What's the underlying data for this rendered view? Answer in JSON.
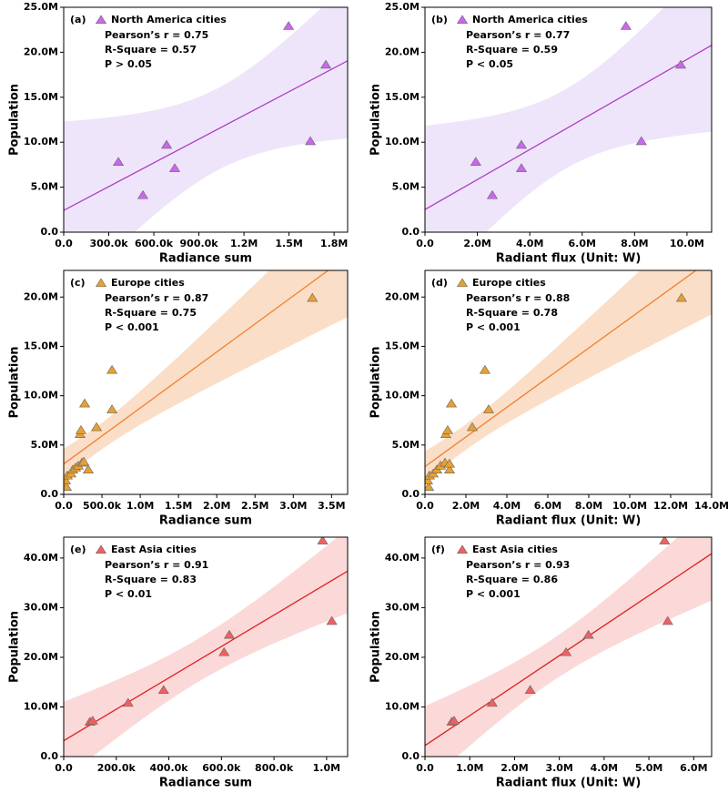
{
  "chart_data": [
    {
      "type": "scatter",
      "panel": "(a)",
      "xlabel": "Radiance sum",
      "ylabel": "Population",
      "annotations": [
        "Pearson’s r = 0.75",
        "R-Square = 0.57",
        "P > 0.05"
      ],
      "series": [
        {
          "name": "North America cities",
          "color": "#cc66ee",
          "x": [
            364000,
            527000,
            685000,
            739000,
            1497000,
            1642000,
            1745000
          ],
          "values": [
            7800000,
            4100000,
            9700000,
            7100000,
            22900000,
            10100000,
            18600000
          ]
        }
      ],
      "fit_color": "#b040c0",
      "band_color": "#e8dcf8",
      "xlim": [
        0,
        1890000
      ],
      "ylim": [
        0,
        25000000
      ],
      "xticks": [
        {
          "value": 0,
          "label": "0.0"
        },
        {
          "value": 300000,
          "label": "300.0k"
        },
        {
          "value": 600000,
          "label": "600.0k"
        },
        {
          "value": 900000,
          "label": "900.0k"
        },
        {
          "value": 1200000,
          "label": "1.2M"
        },
        {
          "value": 1500000,
          "label": "1.5M"
        },
        {
          "value": 1800000,
          "label": "1.8M"
        }
      ],
      "yticks": [
        {
          "value": 0,
          "label": "0.0"
        },
        {
          "value": 5000000,
          "label": "5.0M"
        },
        {
          "value": 10000000,
          "label": "10.0M"
        },
        {
          "value": 15000000,
          "label": "15.0M"
        },
        {
          "value": 20000000,
          "label": "20.0M"
        },
        {
          "value": 25000000,
          "label": "25.0M"
        }
      ]
    },
    {
      "type": "scatter",
      "panel": "(b)",
      "xlabel": "Radiant flux (Unit: W)",
      "ylabel": "Population",
      "annotations": [
        "Pearson’s r = 0.77",
        "R-Square = 0.59",
        "P < 0.05"
      ],
      "series": [
        {
          "name": "North America cities",
          "color": "#cc66ee",
          "x": [
            1940000,
            2570000,
            3680000,
            3680000,
            7670000,
            8260000,
            9760000
          ],
          "values": [
            7800000,
            4100000,
            9700000,
            7100000,
            22900000,
            10100000,
            18600000
          ]
        }
      ],
      "fit_color": "#b040c0",
      "band_color": "#e8dcf8",
      "xlim": [
        0,
        10940000
      ],
      "ylim": [
        0,
        25000000
      ],
      "xticks": [
        {
          "value": 0,
          "label": "0.0"
        },
        {
          "value": 2000000,
          "label": "2.0M"
        },
        {
          "value": 4000000,
          "label": "4.0M"
        },
        {
          "value": 6000000,
          "label": "6.0M"
        },
        {
          "value": 8000000,
          "label": "8.0M"
        },
        {
          "value": 10000000,
          "label": "10.0M"
        }
      ],
      "yticks": [
        {
          "value": 0,
          "label": "0.0"
        },
        {
          "value": 5000000,
          "label": "5.0M"
        },
        {
          "value": 10000000,
          "label": "10.0M"
        },
        {
          "value": 15000000,
          "label": "15.0M"
        },
        {
          "value": 20000000,
          "label": "20.0M"
        },
        {
          "value": 25000000,
          "label": "25.0M"
        }
      ]
    },
    {
      "type": "scatter",
      "panel": "(c)",
      "xlabel": "Radiance sum",
      "ylabel": "Population",
      "annotations": [
        "Pearson’s r = 0.87",
        "R-Square = 0.75",
        "P < 0.001"
      ],
      "series": [
        {
          "name": "Europe cities",
          "color": "#e8a030",
          "x": [
            36000,
            24000,
            48000,
            95000,
            119000,
            155000,
            190000,
            238000,
            262000,
            321000,
            214000,
            226000,
            274000,
            429000,
            631000,
            631000,
            3250000
          ],
          "values": [
            740000,
            1400000,
            1900000,
            2100000,
            2500000,
            2700000,
            2900000,
            3200000,
            3300000,
            2500000,
            6100000,
            6500000,
            9200000,
            6800000,
            8600000,
            12600000,
            19900000
          ]
        }
      ],
      "fit_color": "#f08030",
      "band_color": "#f9d3b4",
      "xlim": [
        0,
        3710000
      ],
      "ylim": [
        0,
        22700000
      ],
      "xticks": [
        {
          "value": 0,
          "label": "0.0"
        },
        {
          "value": 500000,
          "label": "500.0k"
        },
        {
          "value": 1000000,
          "label": "1.0M"
        },
        {
          "value": 1500000,
          "label": "1.5M"
        },
        {
          "value": 2000000,
          "label": "2.0M"
        },
        {
          "value": 2500000,
          "label": "2.5M"
        },
        {
          "value": 3000000,
          "label": "3.0M"
        },
        {
          "value": 3500000,
          "label": "3.5M"
        }
      ],
      "yticks": [
        {
          "value": 0,
          "label": "0.0"
        },
        {
          "value": 5000000,
          "label": "5.0M"
        },
        {
          "value": 10000000,
          "label": "10.0M"
        },
        {
          "value": 15000000,
          "label": "15.0M"
        },
        {
          "value": 20000000,
          "label": "20.0M"
        }
      ]
    },
    {
      "type": "scatter",
      "panel": "(d)",
      "xlabel": "Radiant flux (Unit: W)",
      "ylabel": "Population",
      "annotations": [
        "Pearson’s r = 0.88",
        "R-Square = 0.78",
        "P < 0.001"
      ],
      "series": [
        {
          "name": "Europe cities",
          "color": "#e8a030",
          "x": [
            180000,
            130000,
            220000,
            400000,
            580000,
            760000,
            980000,
            1200000,
            1200000,
            1020000,
            1110000,
            1290000,
            2310000,
            3110000,
            2930000,
            12530000
          ],
          "values": [
            740000,
            1400000,
            1900000,
            2100000,
            2500000,
            2900000,
            3200000,
            2500000,
            3100000,
            6100000,
            6500000,
            9200000,
            6800000,
            8600000,
            12600000,
            19900000
          ]
        }
      ],
      "fit_color": "#f08030",
      "band_color": "#f9d3b4",
      "xlim": [
        0,
        14000000
      ],
      "ylim": [
        0,
        22700000
      ],
      "xticks": [
        {
          "value": 0,
          "label": "0.0"
        },
        {
          "value": 2000000,
          "label": "2.0M"
        },
        {
          "value": 4000000,
          "label": "4.0M"
        },
        {
          "value": 6000000,
          "label": "6.0M"
        },
        {
          "value": 8000000,
          "label": "8.0M"
        },
        {
          "value": 10000000,
          "label": "10.0M"
        },
        {
          "value": 12000000,
          "label": "12.0M"
        },
        {
          "value": 14000000,
          "label": "14.0M"
        }
      ],
      "yticks": [
        {
          "value": 0,
          "label": "0.0"
        },
        {
          "value": 5000000,
          "label": "5.0M"
        },
        {
          "value": 10000000,
          "label": "10.0M"
        },
        {
          "value": 15000000,
          "label": "15.0M"
        },
        {
          "value": 20000000,
          "label": "20.0M"
        }
      ]
    },
    {
      "type": "scatter",
      "panel": "(e)",
      "xlabel": "Radiance sum",
      "ylabel": "Population",
      "annotations": [
        "Pearson’s r = 0.91",
        "R-Square = 0.83",
        "P < 0.01"
      ],
      "series": [
        {
          "name": "East Asia cities",
          "color": "#f06060",
          "x": [
            100000,
            110000,
            245000,
            380000,
            610000,
            630000,
            985000,
            1020000
          ],
          "values": [
            7000000,
            7200000,
            10800000,
            13400000,
            21000000,
            24500000,
            43500000,
            27300000
          ]
        }
      ],
      "fit_color": "#e02020",
      "band_color": "#f9cccc",
      "xlim": [
        0,
        1080000
      ],
      "ylim": [
        0,
        44200000
      ],
      "xticks": [
        {
          "value": 0,
          "label": "0.0"
        },
        {
          "value": 200000,
          "label": "200.0k"
        },
        {
          "value": 400000,
          "label": "400.0k"
        },
        {
          "value": 600000,
          "label": "600.0k"
        },
        {
          "value": 800000,
          "label": "800.0k"
        },
        {
          "value": 1000000,
          "label": "1.0M"
        }
      ],
      "yticks": [
        {
          "value": 0,
          "label": "0.0"
        },
        {
          "value": 10000000,
          "label": "10.0M"
        },
        {
          "value": 20000000,
          "label": "20.0M"
        },
        {
          "value": 30000000,
          "label": "30.0M"
        },
        {
          "value": 40000000,
          "label": "40.0M"
        }
      ]
    },
    {
      "type": "scatter",
      "panel": "(f)",
      "xlabel": "Radiant flux (Unit: W)",
      "ylabel": "Population",
      "annotations": [
        "Pearson’s r = 0.93",
        "R-Square = 0.86",
        "P < 0.001"
      ],
      "series": [
        {
          "name": "East Asia cities",
          "color": "#f06060",
          "x": [
            600000,
            650000,
            1500000,
            2350000,
            3150000,
            3650000,
            5350000,
            5420000
          ],
          "values": [
            7000000,
            7200000,
            10800000,
            13400000,
            21000000,
            24500000,
            43500000,
            27300000
          ]
        }
      ],
      "fit_color": "#e02020",
      "band_color": "#f9cccc",
      "xlim": [
        0,
        6400000
      ],
      "ylim": [
        0,
        44200000
      ],
      "xticks": [
        {
          "value": 0,
          "label": "0.0"
        },
        {
          "value": 1000000,
          "label": "1.0M"
        },
        {
          "value": 2000000,
          "label": "2.0M"
        },
        {
          "value": 3000000,
          "label": "3.0M"
        },
        {
          "value": 4000000,
          "label": "4.0M"
        },
        {
          "value": 5000000,
          "label": "5.0M"
        },
        {
          "value": 6000000,
          "label": "6.0M"
        }
      ],
      "yticks": [
        {
          "value": 0,
          "label": "0.0"
        },
        {
          "value": 10000000,
          "label": "10.0M"
        },
        {
          "value": 20000000,
          "label": "20.0M"
        },
        {
          "value": 30000000,
          "label": "30.0M"
        },
        {
          "value": 40000000,
          "label": "40.0M"
        }
      ]
    }
  ]
}
